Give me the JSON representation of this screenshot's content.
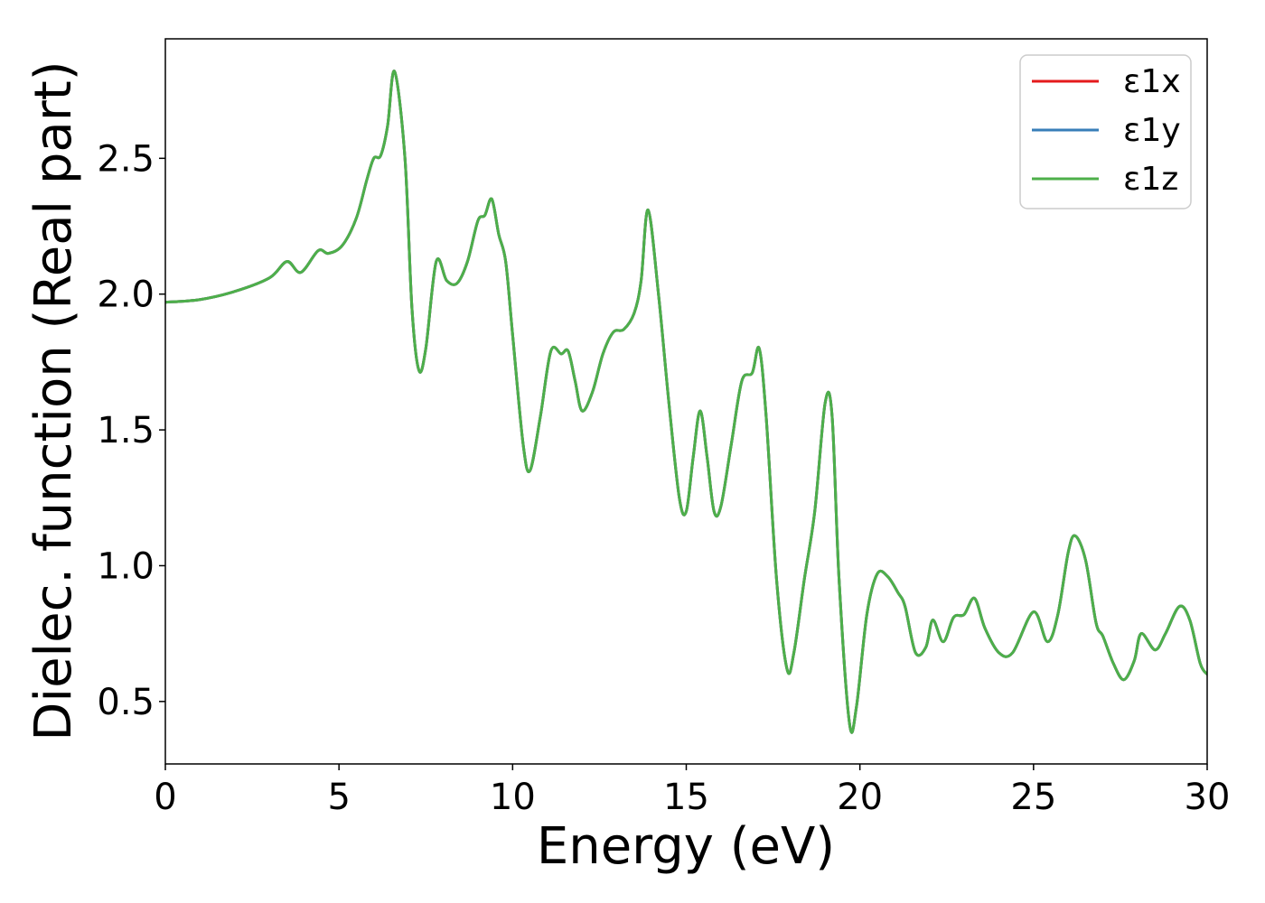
{
  "chart_data": {
    "type": "line",
    "title": "",
    "xlabel": "Energy (eV)",
    "ylabel": "Dielec. function (Real part)",
    "xlim": [
      0,
      30
    ],
    "ylim": [
      0.27,
      2.94
    ],
    "xticks": [
      "0",
      "5",
      "10",
      "15",
      "20",
      "25",
      "30"
    ],
    "yticks": [
      "0.5",
      "1.0",
      "1.5",
      "2.0",
      "2.5"
    ],
    "grid": false,
    "legend_position": "top-right",
    "series": [
      {
        "name": "ε1x",
        "color": "#e41a1c",
        "points": [
          [
            0.0,
            1.97
          ],
          [
            1.0,
            1.98
          ],
          [
            2.0,
            2.01
          ],
          [
            3.0,
            2.06
          ],
          [
            3.5,
            2.12
          ],
          [
            3.9,
            2.08
          ],
          [
            4.4,
            2.16
          ],
          [
            4.7,
            2.15
          ],
          [
            5.1,
            2.18
          ],
          [
            5.5,
            2.28
          ],
          [
            5.8,
            2.42
          ],
          [
            6.0,
            2.5
          ],
          [
            6.2,
            2.51
          ],
          [
            6.4,
            2.62
          ],
          [
            6.6,
            2.82
          ],
          [
            6.9,
            2.5
          ],
          [
            7.1,
            1.95
          ],
          [
            7.3,
            1.72
          ],
          [
            7.5,
            1.8
          ],
          [
            7.8,
            2.12
          ],
          [
            8.1,
            2.05
          ],
          [
            8.4,
            2.04
          ],
          [
            8.7,
            2.12
          ],
          [
            9.0,
            2.27
          ],
          [
            9.2,
            2.29
          ],
          [
            9.4,
            2.35
          ],
          [
            9.6,
            2.22
          ],
          [
            9.8,
            2.12
          ],
          [
            10.0,
            1.85
          ],
          [
            10.3,
            1.45
          ],
          [
            10.5,
            1.35
          ],
          [
            10.8,
            1.55
          ],
          [
            11.1,
            1.79
          ],
          [
            11.4,
            1.78
          ],
          [
            11.6,
            1.79
          ],
          [
            11.8,
            1.68
          ],
          [
            12.0,
            1.57
          ],
          [
            12.3,
            1.64
          ],
          [
            12.6,
            1.78
          ],
          [
            12.9,
            1.86
          ],
          [
            13.2,
            1.87
          ],
          [
            13.5,
            1.93
          ],
          [
            13.7,
            2.05
          ],
          [
            13.9,
            2.31
          ],
          [
            14.2,
            2.0
          ],
          [
            14.5,
            1.6
          ],
          [
            14.8,
            1.25
          ],
          [
            15.0,
            1.2
          ],
          [
            15.2,
            1.4
          ],
          [
            15.4,
            1.57
          ],
          [
            15.6,
            1.4
          ],
          [
            15.8,
            1.2
          ],
          [
            16.0,
            1.22
          ],
          [
            16.3,
            1.45
          ],
          [
            16.6,
            1.68
          ],
          [
            16.9,
            1.71
          ],
          [
            17.1,
            1.8
          ],
          [
            17.3,
            1.55
          ],
          [
            17.6,
            0.95
          ],
          [
            17.9,
            0.62
          ],
          [
            18.1,
            0.68
          ],
          [
            18.4,
            0.95
          ],
          [
            18.7,
            1.2
          ],
          [
            19.0,
            1.6
          ],
          [
            19.2,
            1.55
          ],
          [
            19.4,
            0.95
          ],
          [
            19.7,
            0.42
          ],
          [
            19.9,
            0.48
          ],
          [
            20.2,
            0.82
          ],
          [
            20.5,
            0.97
          ],
          [
            20.8,
            0.96
          ],
          [
            21.1,
            0.9
          ],
          [
            21.3,
            0.85
          ],
          [
            21.6,
            0.68
          ],
          [
            21.9,
            0.7
          ],
          [
            22.1,
            0.8
          ],
          [
            22.4,
            0.72
          ],
          [
            22.7,
            0.81
          ],
          [
            23.0,
            0.82
          ],
          [
            23.3,
            0.88
          ],
          [
            23.6,
            0.77
          ],
          [
            24.0,
            0.68
          ],
          [
            24.4,
            0.68
          ],
          [
            25.0,
            0.83
          ],
          [
            25.4,
            0.72
          ],
          [
            25.7,
            0.82
          ],
          [
            26.0,
            1.05
          ],
          [
            26.2,
            1.11
          ],
          [
            26.5,
            1.02
          ],
          [
            26.8,
            0.79
          ],
          [
            27.0,
            0.74
          ],
          [
            27.3,
            0.64
          ],
          [
            27.6,
            0.58
          ],
          [
            27.9,
            0.65
          ],
          [
            28.1,
            0.75
          ],
          [
            28.5,
            0.69
          ],
          [
            28.8,
            0.75
          ],
          [
            29.2,
            0.85
          ],
          [
            29.5,
            0.8
          ],
          [
            29.8,
            0.64
          ],
          [
            30.0,
            0.6
          ]
        ]
      },
      {
        "name": "ε1y",
        "color": "#377eb8",
        "points": [
          [
            0.0,
            1.97
          ],
          [
            1.0,
            1.98
          ],
          [
            2.0,
            2.01
          ],
          [
            3.0,
            2.06
          ],
          [
            3.5,
            2.12
          ],
          [
            3.9,
            2.08
          ],
          [
            4.4,
            2.16
          ],
          [
            4.7,
            2.15
          ],
          [
            5.1,
            2.18
          ],
          [
            5.5,
            2.28
          ],
          [
            5.8,
            2.42
          ],
          [
            6.0,
            2.5
          ],
          [
            6.2,
            2.51
          ],
          [
            6.4,
            2.62
          ],
          [
            6.6,
            2.82
          ],
          [
            6.9,
            2.5
          ],
          [
            7.1,
            1.95
          ],
          [
            7.3,
            1.72
          ],
          [
            7.5,
            1.8
          ],
          [
            7.8,
            2.12
          ],
          [
            8.1,
            2.05
          ],
          [
            8.4,
            2.04
          ],
          [
            8.7,
            2.12
          ],
          [
            9.0,
            2.27
          ],
          [
            9.2,
            2.29
          ],
          [
            9.4,
            2.35
          ],
          [
            9.6,
            2.22
          ],
          [
            9.8,
            2.12
          ],
          [
            10.0,
            1.85
          ],
          [
            10.3,
            1.45
          ],
          [
            10.5,
            1.35
          ],
          [
            10.8,
            1.55
          ],
          [
            11.1,
            1.79
          ],
          [
            11.4,
            1.78
          ],
          [
            11.6,
            1.79
          ],
          [
            11.8,
            1.68
          ],
          [
            12.0,
            1.57
          ],
          [
            12.3,
            1.64
          ],
          [
            12.6,
            1.78
          ],
          [
            12.9,
            1.86
          ],
          [
            13.2,
            1.87
          ],
          [
            13.5,
            1.93
          ],
          [
            13.7,
            2.05
          ],
          [
            13.9,
            2.31
          ],
          [
            14.2,
            2.0
          ],
          [
            14.5,
            1.6
          ],
          [
            14.8,
            1.25
          ],
          [
            15.0,
            1.2
          ],
          [
            15.2,
            1.4
          ],
          [
            15.4,
            1.57
          ],
          [
            15.6,
            1.4
          ],
          [
            15.8,
            1.2
          ],
          [
            16.0,
            1.22
          ],
          [
            16.3,
            1.45
          ],
          [
            16.6,
            1.68
          ],
          [
            16.9,
            1.71
          ],
          [
            17.1,
            1.8
          ],
          [
            17.3,
            1.55
          ],
          [
            17.6,
            0.95
          ],
          [
            17.9,
            0.62
          ],
          [
            18.1,
            0.68
          ],
          [
            18.4,
            0.95
          ],
          [
            18.7,
            1.2
          ],
          [
            19.0,
            1.6
          ],
          [
            19.2,
            1.55
          ],
          [
            19.4,
            0.95
          ],
          [
            19.7,
            0.42
          ],
          [
            19.9,
            0.48
          ],
          [
            20.2,
            0.82
          ],
          [
            20.5,
            0.97
          ],
          [
            20.8,
            0.96
          ],
          [
            21.1,
            0.9
          ],
          [
            21.3,
            0.85
          ],
          [
            21.6,
            0.68
          ],
          [
            21.9,
            0.7
          ],
          [
            22.1,
            0.8
          ],
          [
            22.4,
            0.72
          ],
          [
            22.7,
            0.81
          ],
          [
            23.0,
            0.82
          ],
          [
            23.3,
            0.88
          ],
          [
            23.6,
            0.77
          ],
          [
            24.0,
            0.68
          ],
          [
            24.4,
            0.68
          ],
          [
            25.0,
            0.83
          ],
          [
            25.4,
            0.72
          ],
          [
            25.7,
            0.82
          ],
          [
            26.0,
            1.05
          ],
          [
            26.2,
            1.11
          ],
          [
            26.5,
            1.02
          ],
          [
            26.8,
            0.79
          ],
          [
            27.0,
            0.74
          ],
          [
            27.3,
            0.64
          ],
          [
            27.6,
            0.58
          ],
          [
            27.9,
            0.65
          ],
          [
            28.1,
            0.75
          ],
          [
            28.5,
            0.69
          ],
          [
            28.8,
            0.75
          ],
          [
            29.2,
            0.85
          ],
          [
            29.5,
            0.8
          ],
          [
            29.8,
            0.64
          ],
          [
            30.0,
            0.6
          ]
        ]
      },
      {
        "name": "ε1z",
        "color": "#4daf4a",
        "points": [
          [
            0.0,
            1.97
          ],
          [
            1.0,
            1.98
          ],
          [
            2.0,
            2.01
          ],
          [
            3.0,
            2.06
          ],
          [
            3.5,
            2.12
          ],
          [
            3.9,
            2.08
          ],
          [
            4.4,
            2.16
          ],
          [
            4.7,
            2.15
          ],
          [
            5.1,
            2.18
          ],
          [
            5.5,
            2.28
          ],
          [
            5.8,
            2.42
          ],
          [
            6.0,
            2.5
          ],
          [
            6.2,
            2.51
          ],
          [
            6.4,
            2.62
          ],
          [
            6.6,
            2.82
          ],
          [
            6.9,
            2.5
          ],
          [
            7.1,
            1.95
          ],
          [
            7.3,
            1.72
          ],
          [
            7.5,
            1.8
          ],
          [
            7.8,
            2.12
          ],
          [
            8.1,
            2.05
          ],
          [
            8.4,
            2.04
          ],
          [
            8.7,
            2.12
          ],
          [
            9.0,
            2.27
          ],
          [
            9.2,
            2.29
          ],
          [
            9.4,
            2.35
          ],
          [
            9.6,
            2.22
          ],
          [
            9.8,
            2.12
          ],
          [
            10.0,
            1.85
          ],
          [
            10.3,
            1.45
          ],
          [
            10.5,
            1.35
          ],
          [
            10.8,
            1.55
          ],
          [
            11.1,
            1.79
          ],
          [
            11.4,
            1.78
          ],
          [
            11.6,
            1.79
          ],
          [
            11.8,
            1.68
          ],
          [
            12.0,
            1.57
          ],
          [
            12.3,
            1.64
          ],
          [
            12.6,
            1.78
          ],
          [
            12.9,
            1.86
          ],
          [
            13.2,
            1.87
          ],
          [
            13.5,
            1.93
          ],
          [
            13.7,
            2.05
          ],
          [
            13.9,
            2.31
          ],
          [
            14.2,
            2.0
          ],
          [
            14.5,
            1.6
          ],
          [
            14.8,
            1.25
          ],
          [
            15.0,
            1.2
          ],
          [
            15.2,
            1.4
          ],
          [
            15.4,
            1.57
          ],
          [
            15.6,
            1.4
          ],
          [
            15.8,
            1.2
          ],
          [
            16.0,
            1.22
          ],
          [
            16.3,
            1.45
          ],
          [
            16.6,
            1.68
          ],
          [
            16.9,
            1.71
          ],
          [
            17.1,
            1.8
          ],
          [
            17.3,
            1.55
          ],
          [
            17.6,
            0.95
          ],
          [
            17.9,
            0.62
          ],
          [
            18.1,
            0.68
          ],
          [
            18.4,
            0.95
          ],
          [
            18.7,
            1.2
          ],
          [
            19.0,
            1.6
          ],
          [
            19.2,
            1.55
          ],
          [
            19.4,
            0.95
          ],
          [
            19.7,
            0.42
          ],
          [
            19.9,
            0.48
          ],
          [
            20.2,
            0.82
          ],
          [
            20.5,
            0.97
          ],
          [
            20.8,
            0.96
          ],
          [
            21.1,
            0.9
          ],
          [
            21.3,
            0.85
          ],
          [
            21.6,
            0.68
          ],
          [
            21.9,
            0.7
          ],
          [
            22.1,
            0.8
          ],
          [
            22.4,
            0.72
          ],
          [
            22.7,
            0.81
          ],
          [
            23.0,
            0.82
          ],
          [
            23.3,
            0.88
          ],
          [
            23.6,
            0.77
          ],
          [
            24.0,
            0.68
          ],
          [
            24.4,
            0.68
          ],
          [
            25.0,
            0.83
          ],
          [
            25.4,
            0.72
          ],
          [
            25.7,
            0.82
          ],
          [
            26.0,
            1.05
          ],
          [
            26.2,
            1.11
          ],
          [
            26.5,
            1.02
          ],
          [
            26.8,
            0.79
          ],
          [
            27.0,
            0.74
          ],
          [
            27.3,
            0.64
          ],
          [
            27.6,
            0.58
          ],
          [
            27.9,
            0.65
          ],
          [
            28.1,
            0.75
          ],
          [
            28.5,
            0.69
          ],
          [
            28.8,
            0.75
          ],
          [
            29.2,
            0.85
          ],
          [
            29.5,
            0.8
          ],
          [
            29.8,
            0.64
          ],
          [
            30.0,
            0.6
          ]
        ]
      }
    ]
  }
}
